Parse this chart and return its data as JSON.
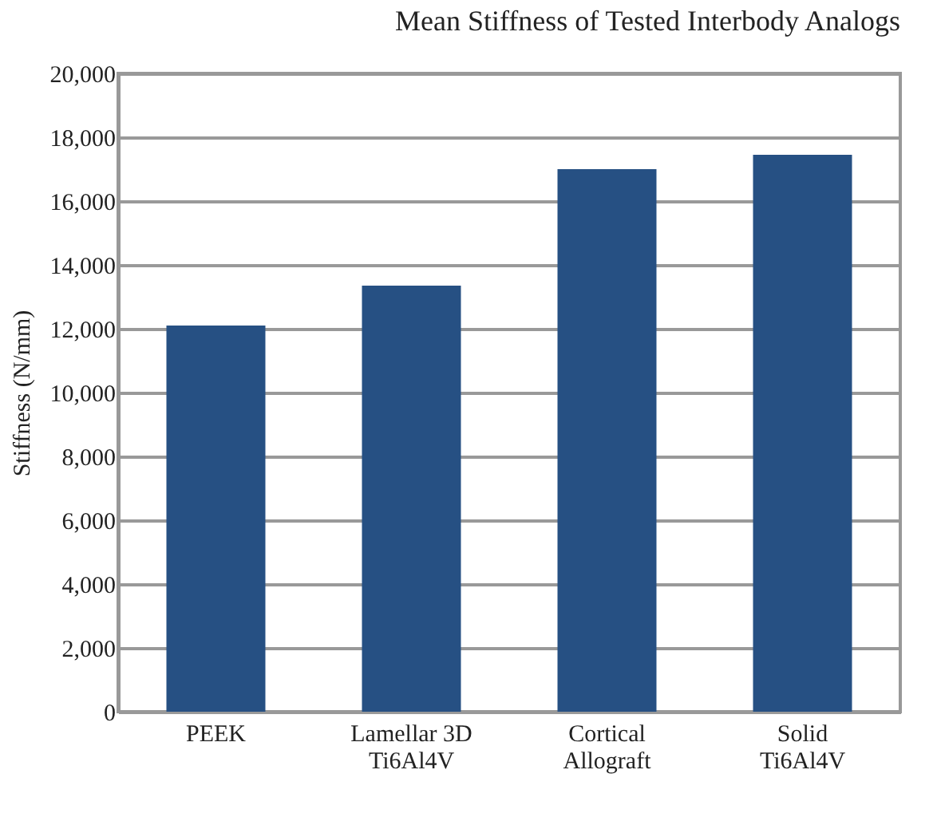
{
  "chart_data": {
    "type": "bar",
    "title": "Mean Stiffness of Tested Interbody Analogs",
    "ylabel": "Stiffness (N/mm)",
    "categories": [
      "PEEK",
      "Lamellar 3D\nTi6Al4V",
      "Cortical\nAllograft",
      "Solid\nTi6Al4V"
    ],
    "values": [
      12100,
      13350,
      17000,
      17450
    ],
    "color": "#265083",
    "ylim": [
      0,
      20000
    ],
    "yticks": [
      {
        "value": 0,
        "label": "0"
      },
      {
        "value": 2000,
        "label": "2,000"
      },
      {
        "value": 4000,
        "label": "4,000"
      },
      {
        "value": 6000,
        "label": "6,000"
      },
      {
        "value": 8000,
        "label": "8,000"
      },
      {
        "value": 10000,
        "label": "10,000"
      },
      {
        "value": 12000,
        "label": "12,000"
      },
      {
        "value": 14000,
        "label": "14,000"
      },
      {
        "value": 16000,
        "label": "16,000"
      },
      {
        "value": 18000,
        "label": "18,000"
      },
      {
        "value": 20000,
        "label": "20,000"
      }
    ],
    "grid": "y"
  }
}
